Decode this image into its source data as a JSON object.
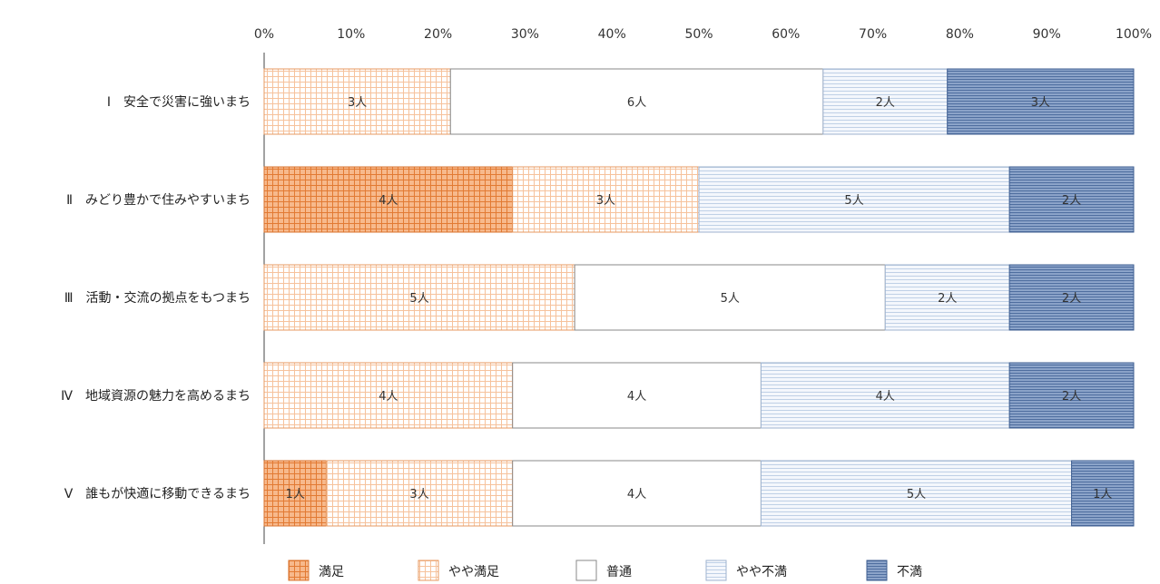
{
  "chart_data": {
    "type": "bar",
    "orientation": "horizontal",
    "stacked": "percent",
    "categories": [
      "Ⅰ　安全で災害に強いまち",
      "Ⅱ　みどり豊かで住みやすいまち",
      "Ⅲ　活動・交流の拠点をもつまち",
      "Ⅳ　地域資源の魅力を高めるまち",
      "Ⅴ　誰もが快適に移動できるまち"
    ],
    "series": [
      {
        "name": "満足",
        "values": [
          0,
          4,
          0,
          0,
          1
        ],
        "color": "#f0975a",
        "pattern": "grid-dense"
      },
      {
        "name": "やや満足",
        "values": [
          3,
          3,
          5,
          4,
          3
        ],
        "color": "#f7b78a",
        "pattern": "grid-light"
      },
      {
        "name": "普通",
        "values": [
          6,
          0,
          5,
          4,
          4
        ],
        "color": "#ffffff",
        "pattern": "none"
      },
      {
        "name": "やや不満",
        "values": [
          2,
          5,
          2,
          4,
          5
        ],
        "color": "#c7d6ea",
        "pattern": "lines-light"
      },
      {
        "name": "不満",
        "values": [
          3,
          2,
          2,
          2,
          1
        ],
        "color": "#5f7fb0",
        "pattern": "lines-dense"
      }
    ],
    "value_suffix": "人",
    "xticks": [
      "0%",
      "10%",
      "20%",
      "30%",
      "40%",
      "50%",
      "60%",
      "70%",
      "80%",
      "90%",
      "100%"
    ],
    "xlim": [
      0,
      100
    ],
    "x_axis_position": "top",
    "legend_position": "bottom",
    "grid": false
  }
}
